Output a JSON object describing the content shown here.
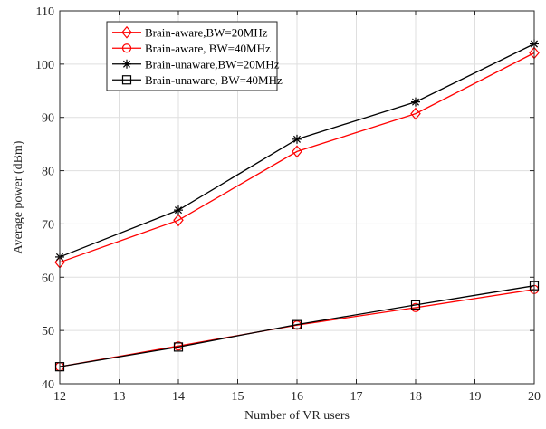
{
  "chart_data": {
    "type": "line",
    "xlabel": "Number of VR users",
    "ylabel": "Average power (dBm)",
    "xlim": [
      12,
      20
    ],
    "ylim": [
      40,
      110
    ],
    "xticks": [
      12,
      13,
      14,
      15,
      16,
      17,
      18,
      19,
      20
    ],
    "yticks": [
      40,
      50,
      60,
      70,
      80,
      90,
      100,
      110
    ],
    "grid": true,
    "legend_position": "top-left",
    "x": [
      12,
      14,
      16,
      18,
      20
    ],
    "series": [
      {
        "name": "Brain-aware,BW=20MHz",
        "color": "#ff0000",
        "marker": "diamond",
        "values": [
          62.8,
          70.7,
          83.6,
          90.7,
          102.1
        ]
      },
      {
        "name": "Brain-aware, BW=40MHz",
        "color": "#ff0000",
        "marker": "circle",
        "values": [
          43.2,
          47.1,
          51.0,
          54.3,
          57.7
        ]
      },
      {
        "name": "Brain-unaware,BW=20MHz",
        "color": "#000000",
        "marker": "asterisk",
        "values": [
          63.8,
          72.6,
          85.9,
          92.9,
          103.8
        ]
      },
      {
        "name": "Brain-unaware, BW=40MHz",
        "color": "#000000",
        "marker": "square",
        "values": [
          43.2,
          46.9,
          51.1,
          54.8,
          58.4
        ]
      }
    ]
  }
}
